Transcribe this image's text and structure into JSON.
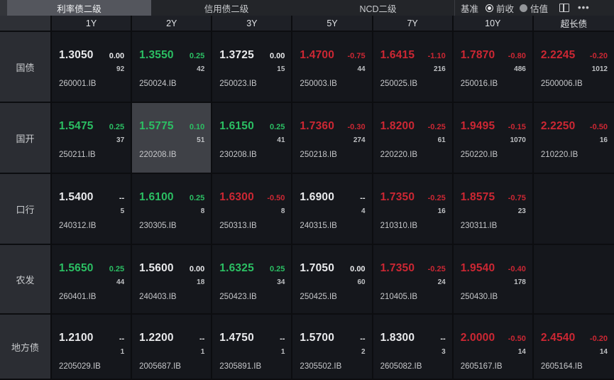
{
  "tabs": [
    {
      "label": "利率债二级",
      "active": true
    },
    {
      "label": "信用债二级",
      "active": false
    },
    {
      "label": "NCD二级",
      "active": false
    }
  ],
  "benchmark": {
    "label": "基准",
    "options": [
      {
        "label": "前收",
        "selected": true
      },
      {
        "label": "估值",
        "selected": false
      }
    ]
  },
  "icons": {
    "layout_grid": "layout-grid-icon",
    "more_glyph": "•••"
  },
  "columns": [
    "1Y",
    "2Y",
    "3Y",
    "5Y",
    "7Y",
    "10Y",
    "超长债"
  ],
  "rows": [
    {
      "label": "国债",
      "cells": [
        {
          "value": "1.3050",
          "change": "0.00",
          "dir": "flat",
          "count": "92",
          "code": "260001.IB"
        },
        {
          "value": "1.3550",
          "change": "0.25",
          "dir": "up",
          "count": "42",
          "code": "250024.IB"
        },
        {
          "value": "1.3725",
          "change": "0.00",
          "dir": "flat",
          "count": "15",
          "code": "250023.IB"
        },
        {
          "value": "1.4700",
          "change": "-0.75",
          "dir": "down",
          "count": "44",
          "code": "250003.IB"
        },
        {
          "value": "1.6415",
          "change": "-1.10",
          "dir": "down",
          "count": "216",
          "code": "250025.IB"
        },
        {
          "value": "1.7870",
          "change": "-0.80",
          "dir": "down",
          "count": "486",
          "code": "250016.IB"
        },
        {
          "value": "2.2245",
          "change": "-0.20",
          "dir": "down",
          "count": "1012",
          "code": "2500006.IB"
        }
      ]
    },
    {
      "label": "国开",
      "cells": [
        {
          "value": "1.5475",
          "change": "0.25",
          "dir": "up",
          "count": "37",
          "code": "250211.IB"
        },
        {
          "value": "1.5775",
          "change": "0.10",
          "dir": "up",
          "count": "51",
          "code": "220208.IB",
          "highlighted": true
        },
        {
          "value": "1.6150",
          "change": "0.25",
          "dir": "up",
          "count": "41",
          "code": "230208.IB"
        },
        {
          "value": "1.7360",
          "change": "-0.30",
          "dir": "down",
          "count": "274",
          "code": "250218.IB"
        },
        {
          "value": "1.8200",
          "change": "-0.25",
          "dir": "down",
          "count": "61",
          "code": "220220.IB"
        },
        {
          "value": "1.9495",
          "change": "-0.15",
          "dir": "down",
          "count": "1070",
          "code": "250220.IB"
        },
        {
          "value": "2.2250",
          "change": "-0.50",
          "dir": "down",
          "count": "16",
          "code": "210220.IB"
        }
      ]
    },
    {
      "label": "口行",
      "cells": [
        {
          "value": "1.5400",
          "change": "--",
          "dir": "flat",
          "count": "5",
          "code": "240312.IB"
        },
        {
          "value": "1.6100",
          "change": "0.25",
          "dir": "up",
          "count": "8",
          "code": "230305.IB"
        },
        {
          "value": "1.6300",
          "change": "-0.50",
          "dir": "down",
          "count": "8",
          "code": "250313.IB"
        },
        {
          "value": "1.6900",
          "change": "--",
          "dir": "flat",
          "count": "4",
          "code": "240315.IB"
        },
        {
          "value": "1.7350",
          "change": "-0.25",
          "dir": "down",
          "count": "16",
          "code": "210310.IB"
        },
        {
          "value": "1.8575",
          "change": "-0.75",
          "dir": "down",
          "count": "23",
          "code": "230311.IB"
        },
        null
      ]
    },
    {
      "label": "农发",
      "cells": [
        {
          "value": "1.5650",
          "change": "0.25",
          "dir": "up",
          "count": "44",
          "code": "260401.IB"
        },
        {
          "value": "1.5600",
          "change": "0.00",
          "dir": "flat",
          "count": "18",
          "code": "240403.IB"
        },
        {
          "value": "1.6325",
          "change": "0.25",
          "dir": "up",
          "count": "34",
          "code": "250423.IB"
        },
        {
          "value": "1.7050",
          "change": "0.00",
          "dir": "flat",
          "count": "60",
          "code": "250425.IB"
        },
        {
          "value": "1.7350",
          "change": "-0.25",
          "dir": "down",
          "count": "24",
          "code": "210405.IB"
        },
        {
          "value": "1.9540",
          "change": "-0.40",
          "dir": "down",
          "count": "178",
          "code": "250430.IB"
        },
        null
      ]
    },
    {
      "label": "地方债",
      "cells": [
        {
          "value": "1.2100",
          "change": "--",
          "dir": "flat",
          "count": "1",
          "code": "2205029.IB"
        },
        {
          "value": "1.2200",
          "change": "--",
          "dir": "flat",
          "count": "1",
          "code": "2005687.IB"
        },
        {
          "value": "1.4750",
          "change": "--",
          "dir": "flat",
          "count": "1",
          "code": "2305891.IB"
        },
        {
          "value": "1.5700",
          "change": "--",
          "dir": "flat",
          "count": "2",
          "code": "2305502.IB"
        },
        {
          "value": "1.8300",
          "change": "--",
          "dir": "flat",
          "count": "3",
          "code": "2605082.IB"
        },
        {
          "value": "2.0000",
          "change": "-0.50",
          "dir": "down",
          "count": "14",
          "code": "2605167.IB"
        },
        {
          "value": "2.4540",
          "change": "-0.20",
          "dir": "down",
          "count": "14",
          "code": "2605164.IB"
        }
      ]
    }
  ],
  "colors": {
    "up": "#2bbf63",
    "down": "#cc2733",
    "neutral": "#e9eaec",
    "highlight_cell": "#3f4147",
    "active_tab": "#54565d",
    "cell_bg": "#15171c"
  }
}
